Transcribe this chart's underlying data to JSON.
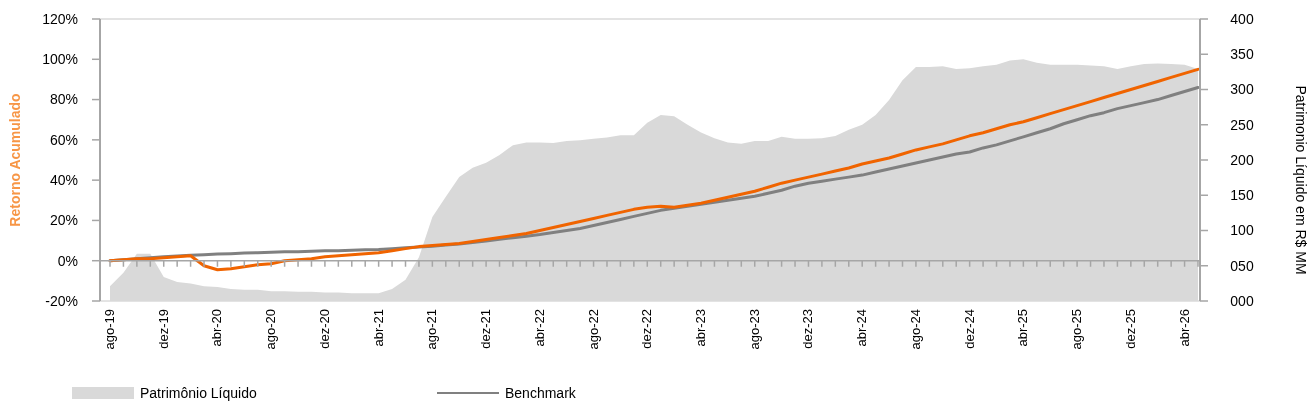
{
  "chart_data": {
    "type": "line",
    "categories": [
      "ago-19",
      null,
      null,
      null,
      "dez-19",
      null,
      null,
      null,
      "abr-20",
      null,
      null,
      null,
      "ago-20",
      null,
      null,
      null,
      "dez-20",
      null,
      null,
      null,
      "abr-21",
      null,
      null,
      null,
      "ago-21",
      null,
      null,
      null,
      "dez-21",
      null,
      null,
      null,
      "abr-22",
      null,
      null,
      null,
      "ago-22",
      null,
      null,
      null,
      "dez-22",
      null,
      null,
      null,
      "abr-23",
      null,
      null,
      null,
      "ago-23",
      null,
      null,
      null,
      "dez-23",
      null,
      null,
      null,
      "abr-24",
      null,
      null,
      null,
      "ago-24",
      null,
      null,
      null,
      "dez-24",
      null,
      null,
      null,
      "abr-25",
      null,
      null,
      null,
      "ago-25",
      null,
      null,
      null,
      "dez-25",
      null,
      null,
      null,
      "abr-26",
      null
    ],
    "series": [
      {
        "name": "Patrimônio Líquido",
        "type": "area",
        "axis": "y2",
        "color": "#d9d9d9",
        "values": [
          21,
          40,
          67,
          67,
          34,
          27,
          25,
          21,
          20,
          17,
          16,
          16,
          14,
          14,
          13,
          13,
          12,
          12,
          11,
          11,
          11,
          17,
          30,
          62,
          119,
          148,
          176,
          189,
          196,
          207,
          221,
          225,
          225,
          224,
          227,
          228,
          230,
          232,
          235,
          235,
          253,
          264,
          262,
          250,
          239,
          231,
          225,
          223,
          227,
          227,
          233,
          230,
          230,
          231,
          234,
          243,
          250,
          264,
          285,
          313,
          332,
          332,
          333,
          329,
          330,
          333,
          335,
          341,
          343,
          338,
          335,
          335,
          335,
          334,
          333,
          329,
          333,
          336,
          337,
          336,
          335,
          329
        ]
      },
      {
        "name": "Benchmark",
        "color": "#808080",
        "values": [
          0,
          0.5,
          1,
          1.5,
          2,
          2.3,
          2.7,
          3,
          3.3,
          3.5,
          3.8,
          4,
          4.2,
          4.4,
          4.5,
          4.7,
          4.9,
          5,
          5.2,
          5.4,
          5.6,
          6,
          6.4,
          6.8,
          7.2,
          7.8,
          8.3,
          9,
          9.8,
          10.6,
          11.4,
          12.2,
          13,
          14,
          15,
          16,
          17.5,
          19,
          20.5,
          22,
          23.5,
          25,
          26,
          27,
          28,
          29,
          30,
          31,
          32,
          33.5,
          35,
          37,
          38.5,
          39.5,
          40.5,
          41.5,
          42.5,
          44,
          45.5,
          47,
          48.5,
          50,
          51.5,
          53,
          54,
          56,
          57.5,
          59.5,
          61.5,
          63.5,
          65.5,
          68,
          70,
          72,
          73.5,
          75.5,
          77,
          78.5,
          80,
          82,
          84,
          86
        ]
      },
      {
        "color": "#f06400",
        "values": [
          0,
          0.5,
          1,
          1,
          1.5,
          2,
          2.5,
          -2.5,
          -4.5,
          -4,
          -3,
          -2,
          -1.5,
          0,
          0.5,
          1,
          2,
          2.5,
          3,
          3.5,
          4,
          5,
          6,
          7,
          7.5,
          8,
          8.5,
          9.5,
          10.5,
          11.5,
          12.5,
          13.5,
          15,
          16.5,
          18,
          19.5,
          21,
          22.5,
          24,
          25.5,
          26.5,
          27,
          26.5,
          27.5,
          28.5,
          30,
          31.5,
          33,
          34.5,
          36.5,
          38.5,
          40,
          41.5,
          43,
          44.5,
          46,
          48,
          49.5,
          51,
          53,
          55,
          56.5,
          58,
          60,
          62,
          63.5,
          65.5,
          67.5,
          69,
          71,
          73,
          75,
          77,
          79,
          81,
          83,
          85,
          87,
          89,
          91,
          93,
          95
        ]
      }
    ],
    "ylabel": "Retorno Acumulado",
    "y2label": "Patrimonio Líquido em R$ MM",
    "ylim": [
      -20,
      120
    ],
    "yticks": [
      {
        "value": -20,
        "label": "-20%"
      },
      {
        "value": 0,
        "label": "0%"
      },
      {
        "value": 20,
        "label": "20%"
      },
      {
        "value": 40,
        "label": "40%"
      },
      {
        "value": 60,
        "label": "60%"
      },
      {
        "value": 80,
        "label": "80%"
      },
      {
        "value": 100,
        "label": "100%"
      },
      {
        "value": 120,
        "label": "120%"
      }
    ],
    "y2lim": [
      0,
      400
    ],
    "y2ticks": [
      {
        "value": 0,
        "label": "000"
      },
      {
        "value": 50,
        "label": "050"
      },
      100,
      150,
      200,
      250,
      300,
      350,
      400
    ],
    "legend": "bottom"
  }
}
